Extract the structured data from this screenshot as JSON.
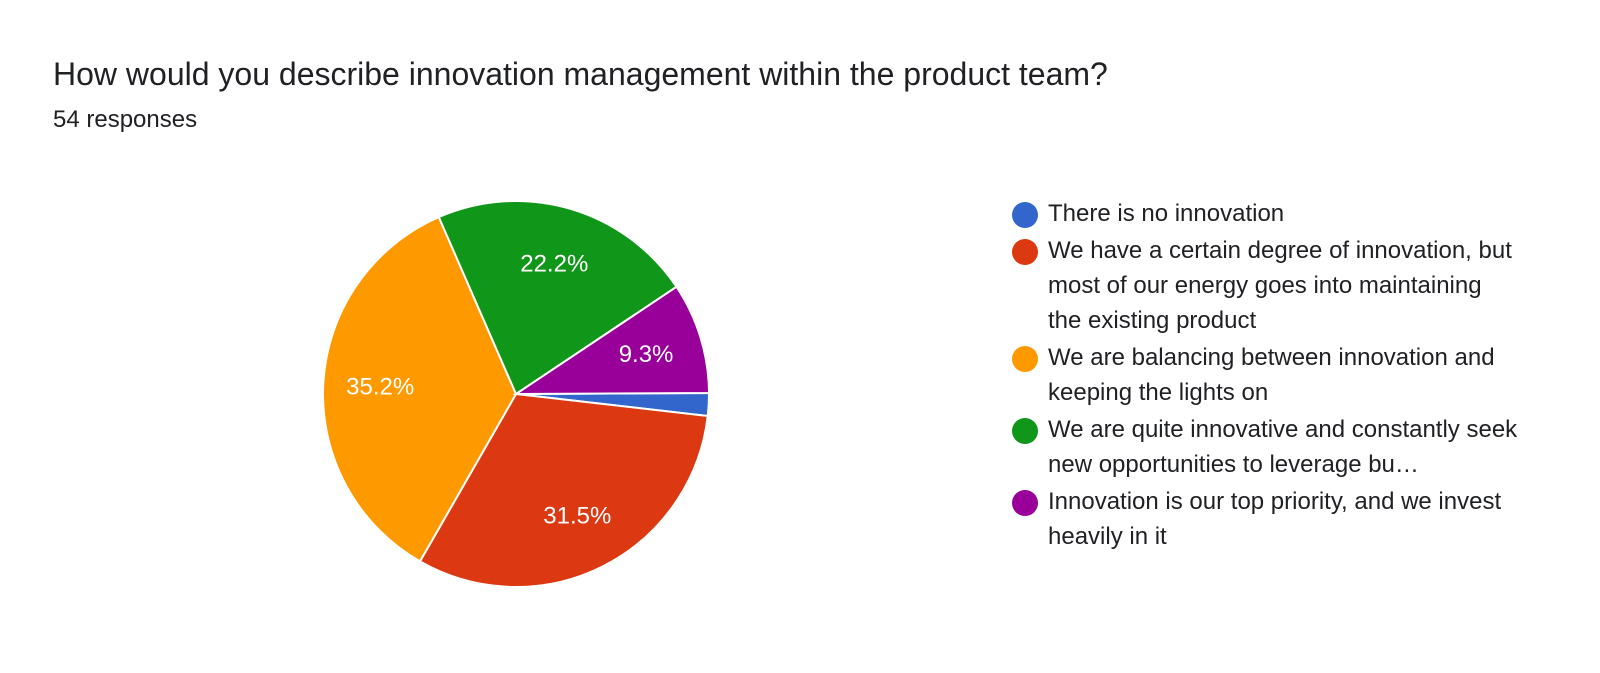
{
  "question": {
    "title": "How would you describe innovation management within the product team?",
    "responses_label": "54 responses"
  },
  "chart_data": {
    "type": "pie",
    "categories": [
      "There is no innovation",
      "We have a certain degree of innovation, but most of our energy goes into maintaining the existing product",
      "We are balancing between innovation and keeping the lights on",
      "We are quite innovative and constantly seek new opportunities to leverage bu…",
      "Innovation is our top priority, and we invest heavily in it"
    ],
    "values": [
      1.9,
      31.5,
      35.2,
      22.2,
      9.3
    ],
    "slice_labels": [
      "",
      "31.5%",
      "35.2%",
      "22.2%",
      "9.3%"
    ],
    "colors": [
      "#3366cc",
      "#dc3912",
      "#ff9900",
      "#109618",
      "#990099"
    ],
    "legend_position": "right"
  }
}
